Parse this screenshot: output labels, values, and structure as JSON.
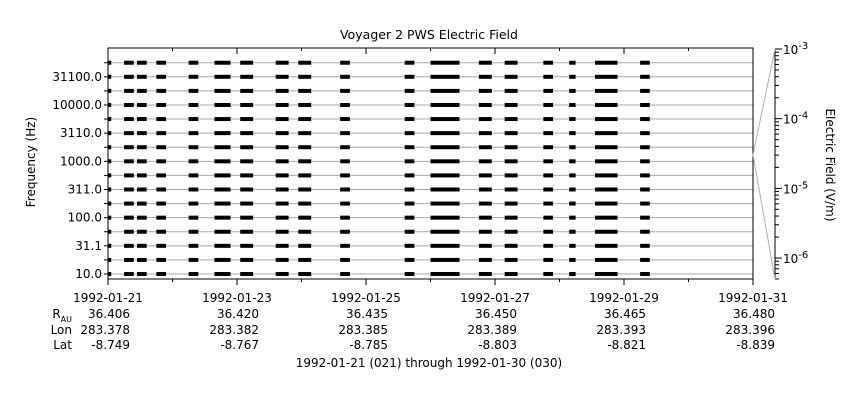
{
  "chart_data": {
    "type": "heatmap",
    "title": "Voyager 2 PWS Electric Field",
    "ylabel": "Frequency (Hz)",
    "colorbar_label": "Electric Field (V/m)",
    "xlabel": "1992-01-21 (021) through 1992-01-30 (030)",
    "x_range": [
      "1992-01-21",
      "1992-01-31"
    ],
    "x_tick_labels": [
      "1992-01-21",
      "1992-01-23",
      "1992-01-25",
      "1992-01-27",
      "1992-01-29",
      "1992-01-31"
    ],
    "channels_hz": [
      "10.0",
      "17.8",
      "31.1",
      "56.2",
      "100.0",
      "178.0",
      "311.0",
      "562.0",
      "1000.0",
      "1780.0",
      "3110.0",
      "5620.0",
      "10000.0",
      "17800.0",
      "31100.0",
      "56200.0"
    ],
    "colorbar_scale": "log",
    "colorbar_range": [
      5e-07,
      0.001
    ],
    "colorbar_ticks": [
      {
        "base": "10",
        "exp": "-3"
      },
      {
        "base": "10",
        "exp": "-4"
      },
      {
        "base": "10",
        "exp": "-5"
      },
      {
        "base": "10",
        "exp": "-6"
      }
    ],
    "coverage_days": [
      [
        0.0,
        0.05
      ],
      [
        0.25,
        0.4
      ],
      [
        0.45,
        0.6
      ],
      [
        0.75,
        0.9
      ],
      [
        1.25,
        1.4
      ],
      [
        1.65,
        1.9
      ],
      [
        2.05,
        2.25
      ],
      [
        2.6,
        2.8
      ],
      [
        2.95,
        3.15
      ],
      [
        3.6,
        3.75
      ],
      [
        4.6,
        4.75
      ],
      [
        5.0,
        5.45
      ],
      [
        5.75,
        5.95
      ],
      [
        6.15,
        6.35
      ],
      [
        6.75,
        6.9
      ],
      [
        7.15,
        7.25
      ],
      [
        7.55,
        7.9
      ],
      [
        8.25,
        8.4
      ]
    ],
    "grid": false,
    "ephemeris": {
      "rows": [
        {
          "label": "R",
          "sub": "AU",
          "values": [
            "36.406",
            "36.420",
            "36.435",
            "36.450",
            "36.465",
            "36.480"
          ]
        },
        {
          "label": "Lon",
          "values": [
            "283.378",
            "283.382",
            "283.385",
            "283.389",
            "283.393",
            "283.396"
          ]
        },
        {
          "label": "Lat",
          "values": [
            "-8.749",
            "-8.767",
            "-8.785",
            "-8.803",
            "-8.821",
            "-8.839"
          ]
        }
      ]
    }
  }
}
